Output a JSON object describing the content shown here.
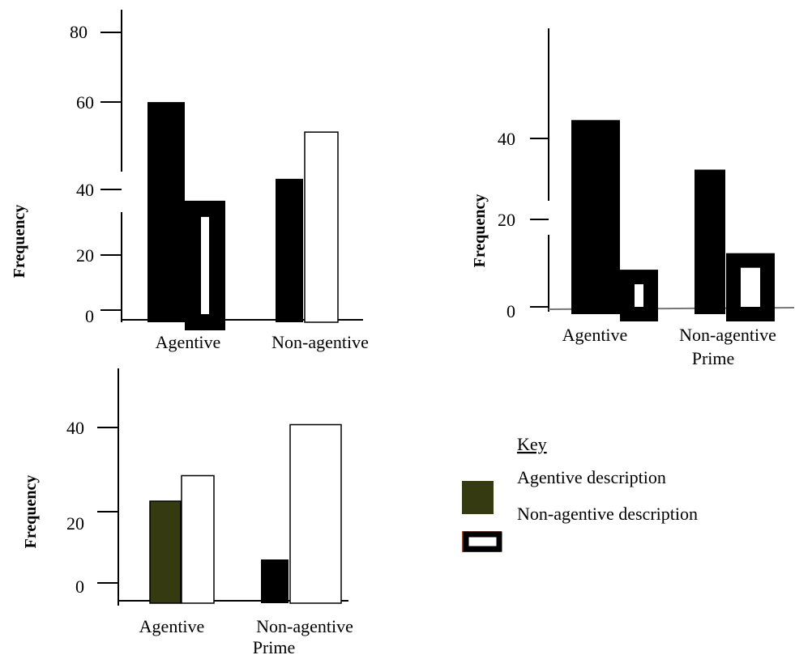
{
  "chart_data": [
    {
      "type": "bar",
      "categories": [
        "Agentive",
        "Non-agentive"
      ],
      "series": [
        {
          "values": [
            66,
            43
          ]
        },
        {
          "values": [
            34,
            57
          ]
        }
      ],
      "ylabel": "Frequency",
      "yticks": [
        0,
        20,
        40,
        60,
        80
      ],
      "ylim": [
        0,
        80
      ]
    },
    {
      "type": "bar",
      "categories": [
        "Agentive",
        "Non-agentive"
      ],
      "series": [
        {
          "values": [
            47,
            35
          ]
        },
        {
          "values": [
            9,
            13
          ]
        }
      ],
      "xlabel": "Prime",
      "ylabel": "Frequency",
      "yticks": [
        0,
        20,
        40
      ],
      "ylim": [
        0,
        60
      ]
    },
    {
      "type": "bar",
      "categories": [
        "Agentive",
        "Non-agentive"
      ],
      "series": [
        {
          "values": [
            28,
            12
          ]
        },
        {
          "values": [
            35,
            49
          ]
        }
      ],
      "xlabel": "Prime",
      "ylabel": "Frequency",
      "yticks": [
        0,
        20,
        40
      ],
      "ylim": [
        0,
        50
      ]
    }
  ],
  "key": {
    "title": "Key",
    "items": [
      "Agentive description",
      "Non-agentive description"
    ],
    "swatch_colors": [
      "#363A10",
      "#A0522D"
    ]
  },
  "colors": {
    "black": "#000000",
    "olive": "#363A10",
    "white": "#ffffff",
    "key_border": "#A0522D"
  }
}
